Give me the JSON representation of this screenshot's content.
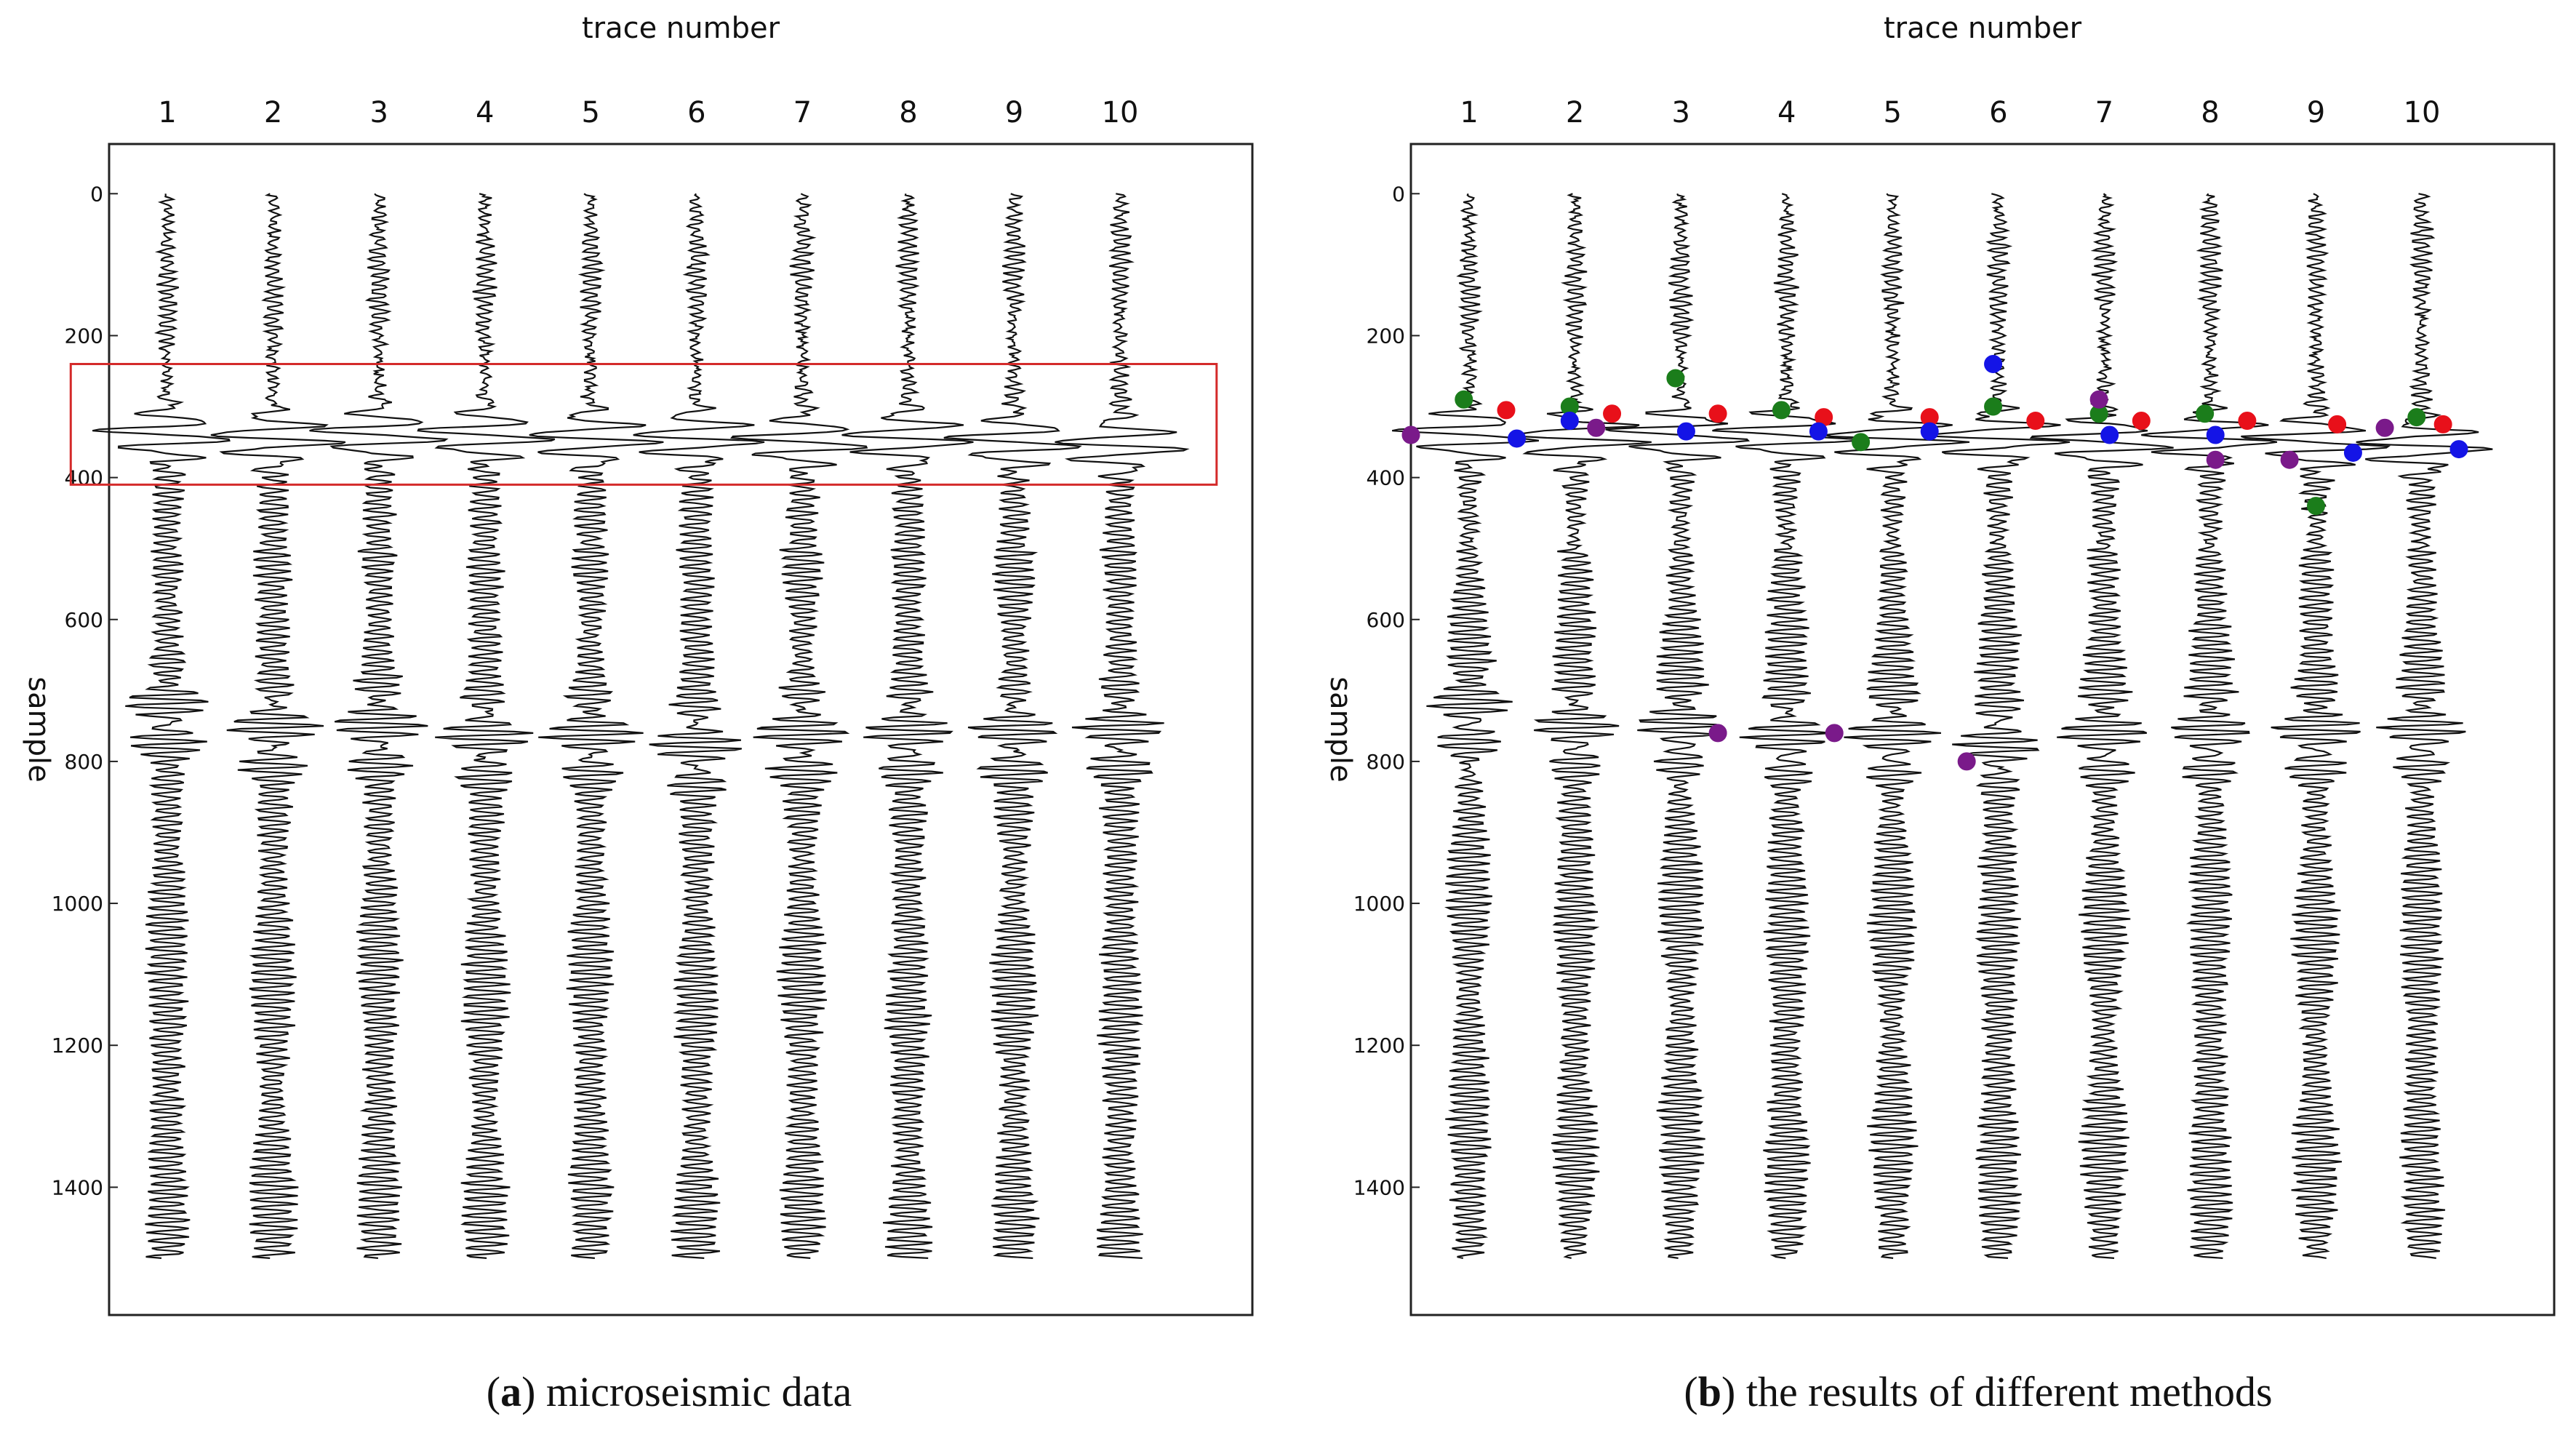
{
  "figure": {
    "caption_a": {
      "label": "a",
      "text": "microseismic data"
    },
    "caption_b": {
      "label": "b",
      "text": "the results of different methods"
    }
  },
  "chart_data": [
    {
      "type": "seismic-wiggle",
      "title": "trace number",
      "xlabel": "trace number",
      "ylabel": "sample",
      "x": [
        1,
        2,
        3,
        4,
        5,
        6,
        7,
        8,
        9,
        10
      ],
      "xticks": [
        "1",
        "2",
        "3",
        "4",
        "5",
        "6",
        "7",
        "8",
        "9",
        "10"
      ],
      "yticks": [
        "0",
        "200",
        "400",
        "600",
        "800",
        "1000",
        "1200",
        "1400"
      ],
      "ytick_values": [
        0,
        200,
        400,
        600,
        800,
        1000,
        1200,
        1400
      ],
      "ylim": [
        1580,
        -70
      ],
      "xlim": [
        0.45,
        11.25
      ],
      "samples": [
        0,
        1500
      ],
      "first_arrival_samples": [
        340,
        345,
        340,
        340,
        345,
        345,
        350,
        345,
        350,
        355
      ],
      "event2_samples": [
        740,
        760,
        760,
        770,
        770,
        780,
        770,
        770,
        770,
        770
      ],
      "highlight_box": {
        "x_range": [
          0.5,
          10.5
        ],
        "sample_range": [
          240,
          410
        ],
        "color": "#d42a2a"
      }
    },
    {
      "type": "seismic-wiggle",
      "title": "trace number",
      "xlabel": "trace number",
      "ylabel": "sample",
      "x": [
        1,
        2,
        3,
        4,
        5,
        6,
        7,
        8,
        9,
        10
      ],
      "xticks": [
        "1",
        "2",
        "3",
        "4",
        "5",
        "6",
        "7",
        "8",
        "9",
        "10"
      ],
      "yticks": [
        "0",
        "200",
        "400",
        "600",
        "800",
        "1000",
        "1200",
        "1400"
      ],
      "ytick_values": [
        0,
        200,
        400,
        600,
        800,
        1000,
        1200,
        1400
      ],
      "ylim": [
        1580,
        -70
      ],
      "xlim": [
        0.45,
        11.25
      ],
      "samples": [
        0,
        1500
      ],
      "first_arrival_samples": [
        340,
        345,
        340,
        340,
        345,
        345,
        350,
        345,
        350,
        355
      ],
      "event2_samples": [
        740,
        760,
        760,
        770,
        770,
        780,
        770,
        770,
        770,
        770
      ],
      "series": [
        {
          "name": "red",
          "color": "#e8101a",
          "points": [
            [
              1.35,
              305
            ],
            [
              2.35,
              310
            ],
            [
              3.35,
              310
            ],
            [
              4.35,
              315
            ],
            [
              5.35,
              315
            ],
            [
              6.35,
              320
            ],
            [
              7.35,
              320
            ],
            [
              8.35,
              320
            ],
            [
              9.2,
              325
            ],
            [
              10.2,
              325
            ]
          ]
        },
        {
          "name": "green",
          "color": "#1b7d1b",
          "points": [
            [
              0.95,
              290
            ],
            [
              1.95,
              300
            ],
            [
              2.95,
              260
            ],
            [
              3.95,
              305
            ],
            [
              4.7,
              350
            ],
            [
              5.95,
              300
            ],
            [
              6.95,
              310
            ],
            [
              7.95,
              310
            ],
            [
              9.0,
              440
            ],
            [
              9.95,
              315
            ]
          ]
        },
        {
          "name": "blue",
          "color": "#1414e6",
          "points": [
            [
              1.45,
              345
            ],
            [
              1.95,
              320
            ],
            [
              3.05,
              335
            ],
            [
              4.3,
              335
            ],
            [
              5.35,
              335
            ],
            [
              5.95,
              240
            ],
            [
              7.05,
              340
            ],
            [
              8.05,
              340
            ],
            [
              9.35,
              365
            ],
            [
              10.35,
              360
            ]
          ]
        },
        {
          "name": "purple",
          "color": "#7a1a8a",
          "points": [
            [
              0.45,
              340
            ],
            [
              2.2,
              330
            ],
            [
              3.35,
              760
            ],
            [
              4.45,
              760
            ],
            [
              5.7,
              800
            ],
            [
              6.95,
              290
            ],
            [
              8.05,
              375
            ],
            [
              8.75,
              375
            ],
            [
              9.65,
              330
            ]
          ]
        }
      ]
    }
  ]
}
